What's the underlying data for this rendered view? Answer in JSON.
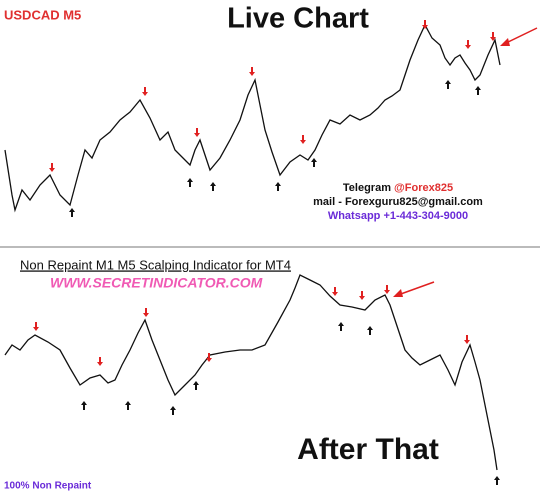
{
  "top_panel": {
    "symbol": "USDCAD M5",
    "title": "Live Chart",
    "contact": {
      "telegram_label": "Telegram",
      "telegram_handle": "@Forex825",
      "mail": "mail - Forexguru825@gmail.com",
      "whatsapp": "Whatsapp +1-443-304-9000"
    }
  },
  "bottom_panel": {
    "heading": "Non Repaint M1 M5 Scalping Indicator for MT4",
    "website": "WWW.SECRETINDICATOR.COM",
    "title": "After That",
    "footer": "100% Non Repaint"
  }
}
